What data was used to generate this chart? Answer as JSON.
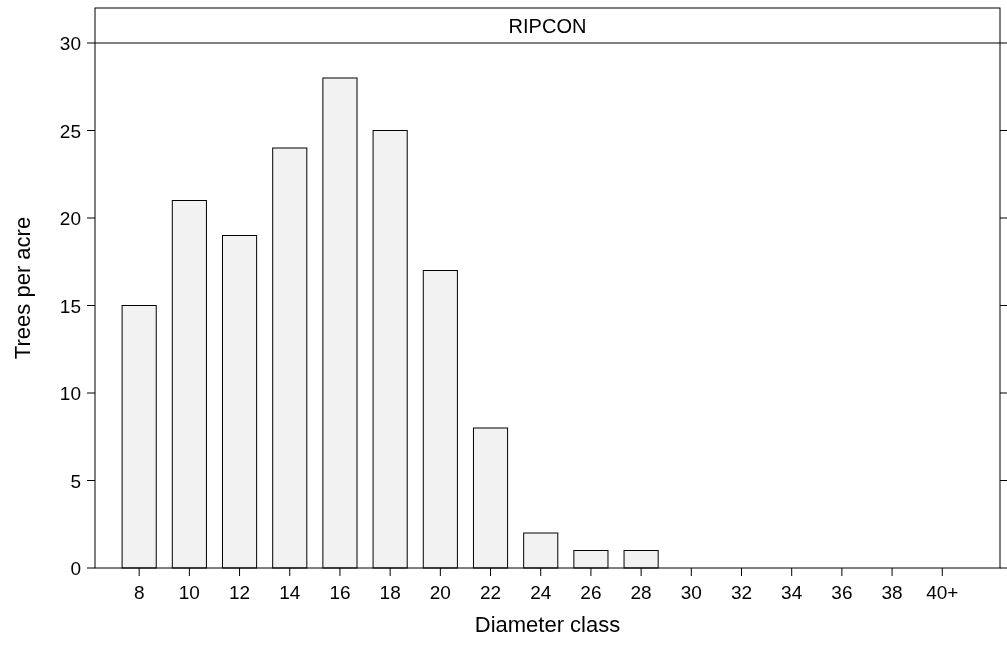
{
  "chart_data": {
    "type": "bar",
    "title": "RIPCON",
    "xlabel": "Diameter class",
    "ylabel": "Trees per acre",
    "categories": [
      "8",
      "10",
      "12",
      "14",
      "16",
      "18",
      "20",
      "22",
      "24",
      "26",
      "28",
      "30",
      "32",
      "34",
      "36",
      "38",
      "40+"
    ],
    "values": [
      15,
      21,
      19,
      24,
      28,
      25,
      17,
      8,
      2,
      1,
      1,
      0,
      0,
      0,
      0,
      0,
      0
    ],
    "color": "#f2f2f2",
    "ylim": [
      0,
      30
    ],
    "yticks": [
      0,
      5,
      10,
      15,
      20,
      25,
      30
    ],
    "grid": false
  }
}
